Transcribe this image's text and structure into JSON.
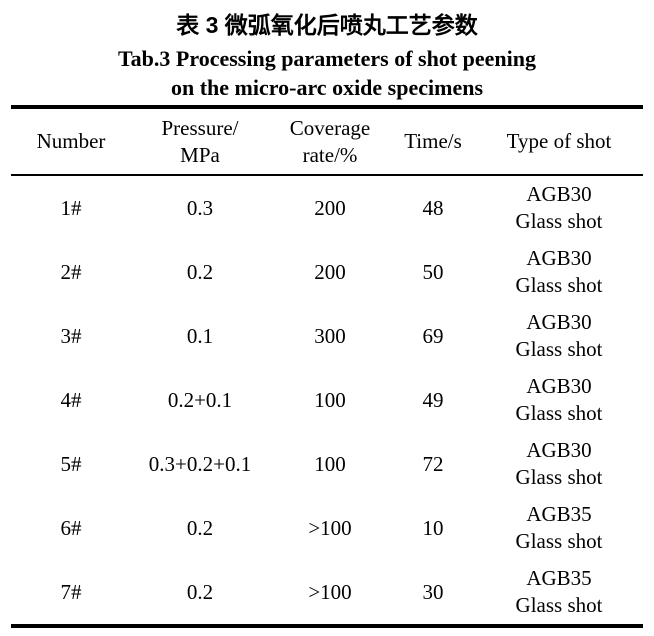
{
  "page": {
    "title_zh": "表 3 微弧氧化后喷丸工艺参数",
    "title_en_line1": "Tab.3 Processing parameters of shot peening",
    "title_en_line2": "on the micro-arc oxide specimens"
  },
  "table": {
    "headers": [
      [
        "Number"
      ],
      [
        "Pressure/",
        "MPa"
      ],
      [
        "Coverage",
        "rate/%"
      ],
      [
        "Time/s"
      ],
      [
        "Type of shot"
      ]
    ],
    "rows": [
      {
        "number": "1#",
        "pressure": "0.3",
        "coverage": "200",
        "time": "48",
        "shot_line1": "AGB30",
        "shot_line2": "Glass shot"
      },
      {
        "number": "2#",
        "pressure": "0.2",
        "coverage": "200",
        "time": "50",
        "shot_line1": "AGB30",
        "shot_line2": "Glass shot"
      },
      {
        "number": "3#",
        "pressure": "0.1",
        "coverage": "300",
        "time": "69",
        "shot_line1": "AGB30",
        "shot_line2": "Glass shot"
      },
      {
        "number": "4#",
        "pressure": "0.2+0.1",
        "coverage": "100",
        "time": "49",
        "shot_line1": "AGB30",
        "shot_line2": "Glass shot"
      },
      {
        "number": "5#",
        "pressure": "0.3+0.2+0.1",
        "coverage": "100",
        "time": "72",
        "shot_line1": "AGB30",
        "shot_line2": "Glass shot"
      },
      {
        "number": "6#",
        "pressure": "0.2",
        "coverage": ">100",
        "time": "10",
        "shot_line1": "AGB35",
        "shot_line2": "Glass shot"
      },
      {
        "number": "7#",
        "pressure": "0.2",
        "coverage": ">100",
        "time": "30",
        "shot_line1": "AGB35",
        "shot_line2": "Glass shot"
      }
    ],
    "colors": {
      "text": "#000000",
      "rule": "#000000",
      "background": "#ffffff"
    }
  }
}
